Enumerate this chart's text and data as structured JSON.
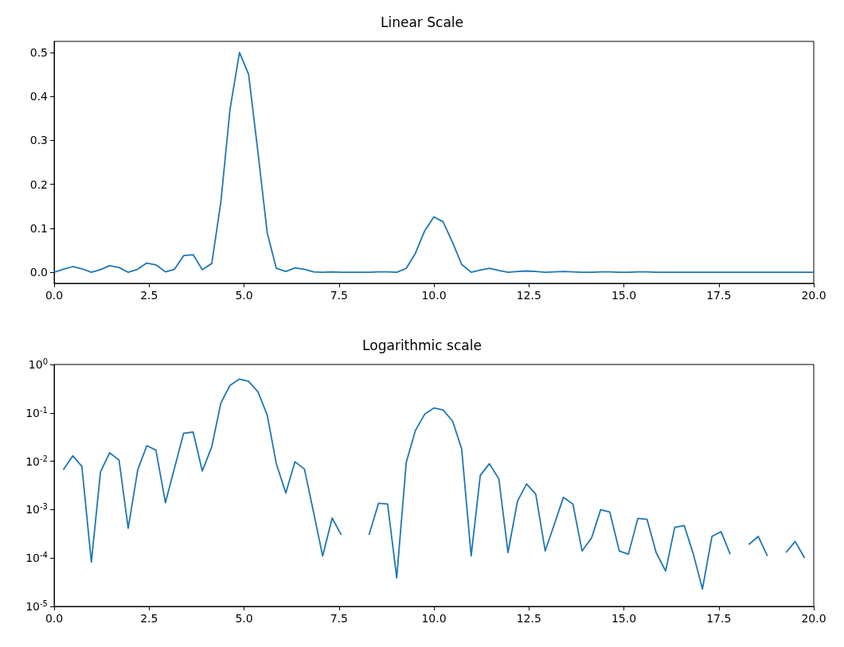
{
  "chart_data": [
    {
      "type": "line",
      "title": "Linear Scale",
      "x": [
        0,
        0.24,
        0.49,
        0.73,
        0.98,
        1.22,
        1.46,
        1.71,
        1.95,
        2.2,
        2.44,
        2.68,
        2.93,
        3.17,
        3.41,
        3.66,
        3.9,
        4.15,
        4.39,
        4.63,
        4.88,
        5.12,
        5.37,
        5.61,
        5.85,
        6.1,
        6.34,
        6.59,
        6.83,
        7.07,
        7.32,
        7.56,
        7.8,
        8.05,
        8.29,
        8.54,
        8.78,
        9.02,
        9.27,
        9.51,
        9.76,
        10.0,
        10.24,
        10.49,
        10.73,
        10.98,
        11.22,
        11.46,
        11.71,
        11.95,
        12.2,
        12.44,
        12.68,
        12.93,
        13.17,
        13.41,
        13.66,
        13.9,
        14.15,
        14.39,
        14.63,
        14.88,
        15.12,
        15.37,
        15.61,
        15.85,
        16.1,
        16.34,
        16.59,
        16.83,
        17.07,
        17.32,
        17.56,
        17.8,
        18.05,
        18.29,
        18.54,
        18.78,
        19.02,
        19.27,
        19.51,
        19.76,
        20.0
      ],
      "series": [
        {
          "color": "#1f77b4",
          "values": [
            0,
            0.007,
            0.013,
            0.008,
            0,
            0.006,
            0.015,
            0.011,
            0,
            0.007,
            0.021,
            0.017,
            0.001,
            0.007,
            0.038,
            0.04,
            0.006,
            0.02,
            0.16,
            0.37,
            0.5,
            0.45,
            0.27,
            0.09,
            0.009,
            0.002,
            0.01,
            0.007,
            0.001,
            0,
            0.001,
            0,
            0,
            0,
            0,
            0.001,
            0.001,
            0,
            0.009,
            0.043,
            0.095,
            0.126,
            0.115,
            0.068,
            0.018,
            0,
            0.005,
            0.009,
            0.004,
            0,
            0.002,
            0.003,
            0.002,
            0,
            0.001,
            0.002,
            0.001,
            0,
            0,
            0.001,
            0.001,
            0,
            0,
            0.001,
            0.001,
            0,
            0,
            0,
            0,
            0,
            0,
            0,
            0,
            0,
            0,
            0,
            0,
            0,
            0,
            0,
            0,
            0,
            0
          ]
        }
      ],
      "xlim": [
        0,
        20
      ],
      "xticks": [
        {
          "value": 0,
          "label": "0.0"
        },
        {
          "value": 2.5,
          "label": "2.5"
        },
        {
          "value": 5,
          "label": "5.0"
        },
        {
          "value": 7.5,
          "label": "7.5"
        },
        {
          "value": 10,
          "label": "10.0"
        },
        {
          "value": 12.5,
          "label": "12.5"
        },
        {
          "value": 15,
          "label": "15.0"
        },
        {
          "value": 17.5,
          "label": "17.5"
        },
        {
          "value": 20,
          "label": "20.0"
        }
      ],
      "ylim": [
        -0.025,
        0.525
      ],
      "yticks": [
        {
          "value": 0,
          "label": "0.0"
        },
        0.1,
        0.2,
        0.3,
        0.4,
        0.5
      ]
    },
    {
      "type": "line",
      "title": "Logarithmic scale",
      "log": "y",
      "x": [
        0.24,
        0.49,
        0.73,
        0.98,
        1.22,
        1.46,
        1.71,
        1.95,
        2.2,
        2.44,
        2.68,
        2.93,
        3.17,
        3.41,
        3.66,
        3.9,
        4.15,
        4.39,
        4.63,
        4.88,
        5.12,
        5.37,
        5.61,
        5.85,
        6.1,
        6.34,
        6.59,
        6.83,
        7.07,
        7.32,
        7.56,
        7.8,
        8.05,
        8.29,
        8.54,
        8.78,
        9.02,
        9.27,
        9.51,
        9.76,
        10.0,
        10.24,
        10.49,
        10.73,
        10.98,
        11.22,
        11.46,
        11.71,
        11.95,
        12.2,
        12.44,
        12.68,
        12.93,
        13.17,
        13.41,
        13.66,
        13.9,
        14.15,
        14.39,
        14.63,
        14.88,
        15.12,
        15.37,
        15.61,
        15.85,
        16.1,
        16.34,
        16.59,
        16.83,
        17.07,
        17.32,
        17.56,
        17.8,
        18.05,
        18.29,
        18.54,
        18.78,
        19.02,
        19.27,
        19.51,
        19.76
      ],
      "series": [
        {
          "color": "#1f77b4",
          "values": [
            0.0066,
            0.013,
            0.0078,
            8.2e-05,
            0.006,
            0.015,
            0.0105,
            0.00041,
            0.0066,
            0.021,
            0.017,
            0.0014,
            0.0073,
            0.038,
            0.04,
            0.0063,
            0.02,
            0.16,
            0.37,
            0.5,
            0.45,
            0.27,
            0.09,
            0.0089,
            0.0022,
            0.0098,
            0.0069,
            0.00089,
            0.00011,
            0.00067,
            0.0003,
            null,
            null,
            0.0003,
            0.00135,
            0.0013,
            3.9e-05,
            0.0094,
            0.043,
            0.095,
            0.126,
            0.115,
            0.068,
            0.018,
            0.00011,
            0.0051,
            0.0089,
            0.0043,
            0.00013,
            0.0015,
            0.0034,
            0.0021,
            0.00014,
            0.0005,
            0.0018,
            0.0013,
            0.00014,
            0.00026,
            0.001,
            0.00089,
            0.00014,
            0.00012,
            0.00066,
            0.00063,
            0.00013,
            5.4e-05,
            0.00043,
            0.00047,
            0.00012,
            2.3e-05,
            0.00028,
            0.00035,
            0.00012,
            null,
            0.00019,
            0.00028,
            0.00011,
            null,
            0.00013,
            0.00022,
            0.0001
          ]
        }
      ],
      "xlim": [
        0,
        20
      ],
      "xticks": [
        {
          "value": 0,
          "label": "0.0"
        },
        {
          "value": 2.5,
          "label": "2.5"
        },
        {
          "value": 5,
          "label": "5.0"
        },
        {
          "value": 7.5,
          "label": "7.5"
        },
        {
          "value": 10,
          "label": "10.0"
        },
        {
          "value": 12.5,
          "label": "12.5"
        },
        {
          "value": 15,
          "label": "15.0"
        },
        {
          "value": 17.5,
          "label": "17.5"
        },
        {
          "value": 20,
          "label": "20.0"
        }
      ],
      "ylim": [
        1e-05,
        1
      ],
      "yticks": [
        {
          "value": 1e-05,
          "label": "10$^{-5}$"
        },
        {
          "value": 0.0001,
          "label": "10$^{-4}$"
        },
        {
          "value": 0.001,
          "label": "10$^{-3}$"
        },
        {
          "value": 0.01,
          "label": "10$^{-2}$"
        },
        {
          "value": 0.1,
          "label": "10$^{-1}$"
        },
        {
          "value": 1,
          "label": "10$^{0}$"
        }
      ]
    }
  ]
}
